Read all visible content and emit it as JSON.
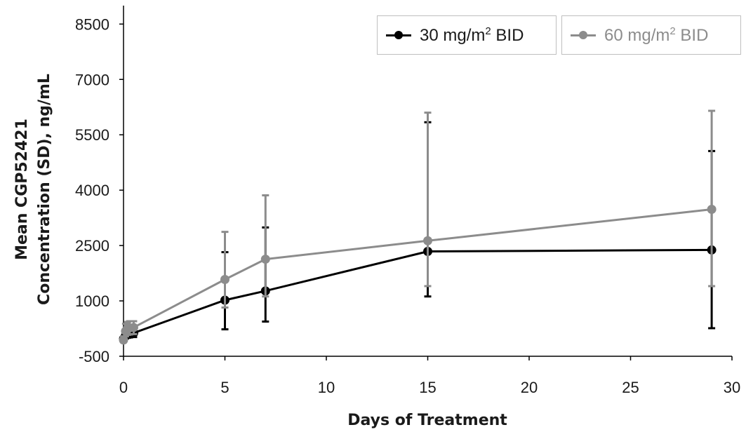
{
  "chart_data": {
    "type": "line",
    "title": "",
    "xlabel": "Days of Treatment",
    "ylabel_lines": [
      "Mean CGP52421",
      "Concentration (SD), ng/mL"
    ],
    "xlim": [
      0,
      30
    ],
    "ylim": [
      -500,
      9000
    ],
    "x_ticks": [
      0,
      5,
      10,
      15,
      20,
      25,
      30
    ],
    "y_ticks": [
      -500,
      1000,
      2500,
      4000,
      5500,
      7000,
      8500
    ],
    "grid": false,
    "legend_position": "top-right",
    "series": [
      {
        "name_main": "30 mg/m",
        "name_sup": "2",
        "name_tail": " BID",
        "color": "#000000",
        "x": [
          0,
          0.1,
          0.2,
          0.3,
          0.5,
          5,
          7,
          15,
          29
        ],
        "y": [
          -30,
          60,
          100,
          110,
          130,
          1020,
          1270,
          2340,
          2380
        ],
        "err_upper": [
          30,
          200,
          220,
          230,
          230,
          2320,
          2990,
          5840,
          5060
        ],
        "err_lower": [
          -80,
          -20,
          0,
          10,
          20,
          230,
          440,
          1120,
          260
        ]
      },
      {
        "name_main": "60 mg/m",
        "name_sup": "2",
        "name_tail": " BID",
        "color": "#8c8c8c",
        "x": [
          0,
          0.1,
          0.2,
          0.3,
          0.5,
          5,
          7,
          15,
          29
        ],
        "y": [
          -60,
          180,
          250,
          270,
          280,
          1580,
          2130,
          2630,
          3480
        ],
        "err_upper": [
          40,
          380,
          430,
          450,
          450,
          2870,
          3860,
          6100,
          6150
        ],
        "err_lower": [
          -120,
          40,
          80,
          90,
          100,
          820,
          1120,
          1400,
          1400
        ]
      }
    ]
  }
}
